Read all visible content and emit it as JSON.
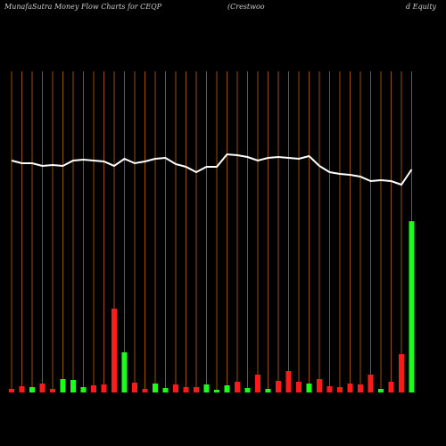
{
  "chart_data": {
    "type": "bar-line",
    "title": "MunafaSutra  Money Flow  Charts for CEQP",
    "subtitle": "(Crestwoo",
    "subtitle2": "d Equity",
    "categories": [
      null,
      null,
      null,
      null,
      null,
      null,
      null,
      null,
      null,
      null,
      null,
      null,
      null,
      null,
      null,
      null,
      null,
      null,
      null,
      null,
      null,
      null,
      null,
      null,
      null,
      null,
      null,
      null,
      null,
      null,
      null,
      null,
      null,
      null,
      null,
      null,
      null,
      null,
      null,
      null
    ],
    "series": [
      {
        "kind": "bar",
        "values": [
          4,
          7,
          6,
          10,
          4,
          15,
          14,
          6,
          8,
          9,
          94,
          45,
          11,
          4,
          10,
          5,
          9,
          6,
          6,
          9,
          3,
          8,
          12,
          5,
          20,
          4,
          13,
          24,
          12,
          10,
          15,
          7,
          6,
          10,
          9,
          20,
          4,
          12,
          43,
          192
        ],
        "colors": [
          "red",
          "red",
          "green",
          "red",
          "red",
          "green",
          "green",
          "green",
          "red",
          "red",
          "red",
          "green",
          "red",
          "red",
          "green",
          "green",
          "red",
          "red",
          "red",
          "green",
          "green",
          "green",
          "red",
          "green",
          "red",
          "green",
          "red",
          "red",
          "red",
          "green",
          "red",
          "red",
          "red",
          "red",
          "red",
          "red",
          "green",
          "red",
          "red",
          "green"
        ]
      },
      {
        "kind": "line",
        "color": "#ffffff",
        "values": [
          260,
          257,
          257,
          254,
          255,
          254,
          260,
          261,
          260,
          259,
          254,
          262,
          257,
          259,
          262,
          263,
          256,
          253,
          247,
          253,
          253,
          267,
          266,
          264,
          260,
          263,
          264,
          263,
          262,
          265,
          254,
          247,
          245,
          244,
          242,
          237,
          238,
          237,
          233,
          250
        ]
      }
    ],
    "ylim": [
      0,
      360
    ],
    "grid_color": "#b8640a"
  }
}
